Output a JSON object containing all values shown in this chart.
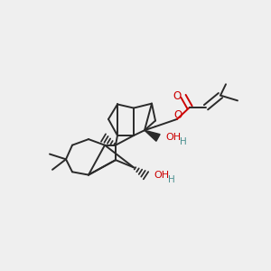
{
  "background": "#efefef",
  "bond_color": "#2a2a2a",
  "oxygen_color": "#cc0000",
  "h_color": "#4a9090",
  "lw": 1.4,
  "xlim": [
    0.05,
    0.95
  ],
  "ylim": [
    0.18,
    0.92
  ]
}
